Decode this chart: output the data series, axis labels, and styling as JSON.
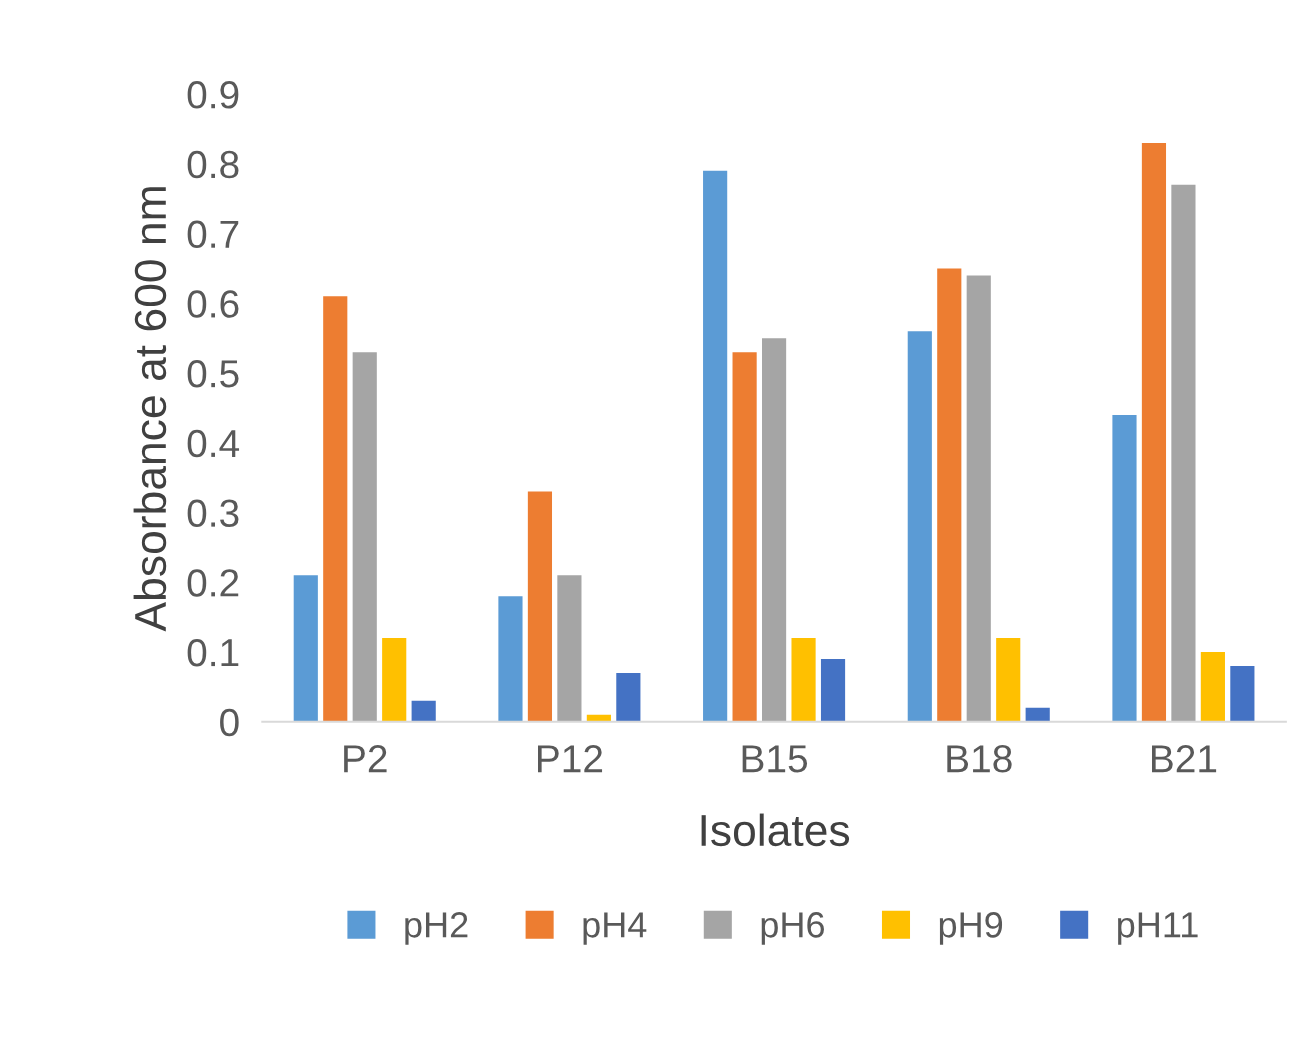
{
  "chart_data": {
    "type": "bar",
    "xlabel": "Isolates",
    "ylabel": "Absorbance at 600 nm",
    "categories": [
      "P2",
      "P12",
      "B15",
      "B18",
      "B21"
    ],
    "series": [
      {
        "name": "pH2",
        "color": "#5b9bd5",
        "values": [
          0.21,
          0.18,
          0.79,
          0.56,
          0.44
        ]
      },
      {
        "name": "pH4",
        "color": "#ed7d31",
        "values": [
          0.61,
          0.33,
          0.53,
          0.65,
          0.83
        ]
      },
      {
        "name": "pH6",
        "color": "#a5a5a5",
        "values": [
          0.53,
          0.21,
          0.55,
          0.64,
          0.77
        ]
      },
      {
        "name": "pH9",
        "color": "#ffc000",
        "values": [
          0.12,
          0.01,
          0.12,
          0.12,
          0.1
        ]
      },
      {
        "name": "pH11",
        "color": "#4472c4",
        "values": [
          0.03,
          0.07,
          0.09,
          0.02,
          0.08
        ]
      }
    ],
    "ylim": [
      0,
      0.9
    ],
    "yticks": [
      0,
      0.1,
      0.2,
      0.3,
      0.4,
      0.5,
      0.6,
      0.7,
      0.8,
      0.9
    ],
    "grid": false,
    "legend": "bottom"
  }
}
